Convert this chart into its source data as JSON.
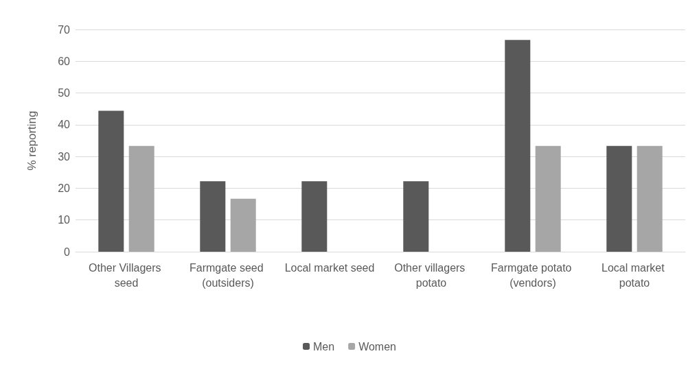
{
  "chart_data": {
    "type": "bar",
    "ylabel": "% reporting",
    "categories": [
      "Other Villagers seed",
      "Farmgate seed (outsiders)",
      "Local market seed",
      "Other villagers potato",
      "Farmgate potato (vendors)",
      "Local market potato"
    ],
    "series": [
      {
        "name": "Men",
        "color": "#595959",
        "values": [
          44.4,
          22.2,
          22.2,
          22.2,
          66.7,
          33.3
        ]
      },
      {
        "name": "Women",
        "color": "#a6a6a6",
        "values": [
          33.3,
          16.7,
          0,
          0,
          33.3,
          33.3
        ]
      }
    ],
    "ylim": [
      0,
      70
    ],
    "yticks": [
      0,
      10,
      20,
      30,
      40,
      50,
      60,
      70
    ],
    "grid": "y",
    "legend": "bottom"
  }
}
